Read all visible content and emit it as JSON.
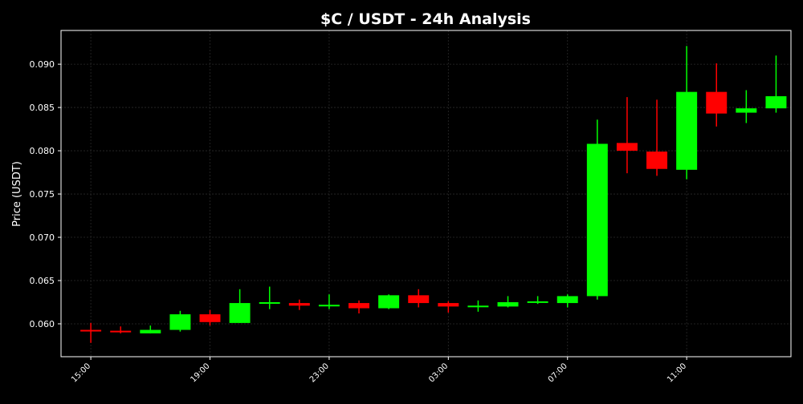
{
  "chart_data": {
    "type": "candlestick",
    "title": "$C / USDT - 24h Analysis",
    "xlabel": "",
    "ylabel": "Price (USDT)",
    "ylim": [
      0.0562,
      0.0939
    ],
    "y_ticks": [
      0.06,
      0.065,
      0.07,
      0.075,
      0.08,
      0.085,
      0.09
    ],
    "y_tick_labels": [
      "0.060",
      "0.065",
      "0.070",
      "0.075",
      "0.080",
      "0.085",
      "0.090"
    ],
    "x_ticks": [
      0,
      4,
      8,
      12,
      16,
      20
    ],
    "x_tick_labels": [
      "15:00",
      "19:00",
      "23:00",
      "03:00",
      "07:00",
      "11:00"
    ],
    "x_range": [
      -1.0,
      23.5
    ],
    "grid": true,
    "colors": {
      "up": "#00ff00",
      "down": "#ff0000",
      "background": "#000000",
      "text": "#ffffff",
      "grid": "#2a2a2a",
      "axes": "#ffffff"
    },
    "candles": [
      {
        "time": "15:00",
        "open": 0.0593,
        "high": 0.0601,
        "low": 0.0578,
        "close": 0.0592
      },
      {
        "time": "16:00",
        "open": 0.0592,
        "high": 0.0597,
        "low": 0.0589,
        "close": 0.0591
      },
      {
        "time": "17:00",
        "open": 0.0589,
        "high": 0.0598,
        "low": 0.0589,
        "close": 0.0593
      },
      {
        "time": "18:00",
        "open": 0.0593,
        "high": 0.0615,
        "low": 0.0591,
        "close": 0.0611
      },
      {
        "time": "19:00",
        "open": 0.0611,
        "high": 0.0616,
        "low": 0.0598,
        "close": 0.0602
      },
      {
        "time": "20:00",
        "open": 0.0601,
        "high": 0.064,
        "low": 0.0601,
        "close": 0.0624
      },
      {
        "time": "21:00",
        "open": 0.0624,
        "high": 0.0643,
        "low": 0.0617,
        "close": 0.0625
      },
      {
        "time": "22:00",
        "open": 0.0624,
        "high": 0.0628,
        "low": 0.0616,
        "close": 0.0621
      },
      {
        "time": "23:00",
        "open": 0.0621,
        "high": 0.0634,
        "low": 0.0617,
        "close": 0.0622
      },
      {
        "time": "00:00",
        "open": 0.0624,
        "high": 0.0627,
        "low": 0.0612,
        "close": 0.0618
      },
      {
        "time": "01:00",
        "open": 0.0618,
        "high": 0.0634,
        "low": 0.0617,
        "close": 0.0633
      },
      {
        "time": "02:00",
        "open": 0.0633,
        "high": 0.064,
        "low": 0.0619,
        "close": 0.0624
      },
      {
        "time": "03:00",
        "open": 0.0624,
        "high": 0.0626,
        "low": 0.0613,
        "close": 0.062
      },
      {
        "time": "04:00",
        "open": 0.062,
        "high": 0.0627,
        "low": 0.0614,
        "close": 0.0621
      },
      {
        "time": "05:00",
        "open": 0.062,
        "high": 0.0632,
        "low": 0.0619,
        "close": 0.0625
      },
      {
        "time": "06:00",
        "open": 0.0625,
        "high": 0.0632,
        "low": 0.0623,
        "close": 0.0626
      },
      {
        "time": "07:00",
        "open": 0.0624,
        "high": 0.0634,
        "low": 0.0619,
        "close": 0.0632
      },
      {
        "time": "08:00",
        "open": 0.0632,
        "high": 0.0836,
        "low": 0.0628,
        "close": 0.0808
      },
      {
        "time": "09:00",
        "open": 0.0809,
        "high": 0.0862,
        "low": 0.0774,
        "close": 0.08
      },
      {
        "time": "10:00",
        "open": 0.0799,
        "high": 0.0859,
        "low": 0.0771,
        "close": 0.0779
      },
      {
        "time": "11:00",
        "open": 0.0778,
        "high": 0.0921,
        "low": 0.0767,
        "close": 0.0868
      },
      {
        "time": "12:00",
        "open": 0.0868,
        "high": 0.0901,
        "low": 0.0828,
        "close": 0.0843
      },
      {
        "time": "13:00",
        "open": 0.0844,
        "high": 0.087,
        "low": 0.0832,
        "close": 0.0849
      },
      {
        "time": "14:00",
        "open": 0.0849,
        "high": 0.091,
        "low": 0.0844,
        "close": 0.0863
      }
    ]
  }
}
